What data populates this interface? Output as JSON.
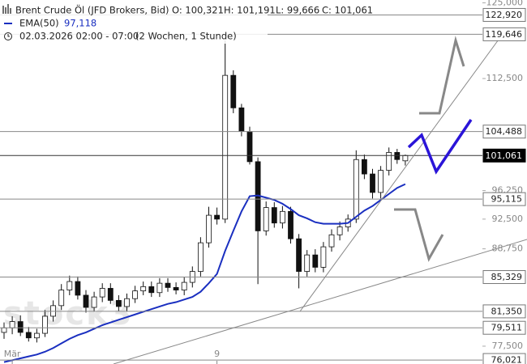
{
  "chart_data": {
    "type": "candlestick",
    "header": {
      "title": "Brent Crude Öl (JFD Brokers, Bid)",
      "open": "O: 100,321",
      "high": "H: 101,191",
      "low": "L: 99,666",
      "close": "C: 101,061",
      "ema_label": "EMA(50)",
      "ema_value": "97,118",
      "period": "02.03.2026 02:00 - 07:00",
      "range": "(2 Wochen, 1 Stunde)"
    },
    "watermark": "stock3",
    "categories": [
      null,
      "Mär",
      null,
      null,
      null,
      null,
      null,
      null,
      null,
      null,
      null,
      null,
      null,
      null,
      null,
      null,
      null,
      null,
      null,
      null,
      null,
      null,
      null,
      null,
      null,
      null,
      "9",
      null,
      null,
      null,
      null,
      null,
      null,
      null,
      null,
      null,
      null,
      null,
      null,
      null,
      null,
      null,
      null,
      null,
      null,
      null,
      null,
      null,
      null,
      null
    ],
    "open": [
      79.0,
      79.5,
      80.2,
      79.0,
      78.4,
      78.9,
      80.8,
      82.0,
      83.8,
      84.8,
      83.2,
      81.8,
      83.0,
      84.0,
      82.6,
      81.9,
      82.8,
      83.7,
      84.2,
      83.5,
      84.6,
      84.1,
      83.8,
      84.7,
      86.0,
      89.5,
      93.0,
      92.5,
      113.0,
      108.0,
      104.5,
      100.2,
      91.0,
      94.0,
      92.0,
      93.5,
      90.0,
      86.0,
      88.0,
      86.5,
      89.0,
      90.5,
      91.5,
      92.5,
      100.5,
      98.5,
      96.0,
      99.0,
      101.5,
      100.321
    ],
    "high": [
      80.1,
      80.8,
      80.9,
      79.6,
      79.4,
      81.5,
      82.6,
      84.5,
      85.5,
      85.4,
      83.8,
      83.6,
      84.6,
      84.6,
      83.2,
      83.4,
      84.3,
      84.8,
      84.8,
      85.2,
      85.2,
      84.7,
      85.3,
      86.6,
      90.2,
      94.1,
      94.0,
      118.6,
      113.8,
      108.6,
      105.2,
      100.8,
      94.8,
      94.7,
      94.2,
      94.1,
      90.6,
      88.6,
      88.7,
      89.6,
      91.2,
      92.2,
      93.1,
      101.8,
      101.2,
      99.2,
      99.6,
      102.2,
      102.0,
      101.191
    ],
    "low": [
      78.3,
      78.8,
      78.6,
      78.0,
      77.9,
      78.5,
      80.2,
      81.5,
      83.2,
      82.7,
      81.2,
      81.3,
      82.4,
      82.2,
      81.4,
      81.3,
      82.3,
      83.2,
      83.0,
      83.0,
      83.6,
      83.3,
      83.2,
      84.1,
      85.4,
      88.9,
      91.8,
      92.0,
      107.2,
      103.8,
      99.8,
      84.5,
      90.4,
      91.4,
      91.3,
      89.4,
      84.0,
      85.4,
      85.9,
      85.9,
      88.4,
      89.8,
      90.9,
      92.0,
      97.8,
      95.2,
      95.2,
      98.3,
      99.9,
      99.666
    ],
    "close": [
      79.5,
      80.2,
      79.0,
      78.4,
      78.9,
      80.8,
      82.0,
      83.8,
      84.8,
      83.2,
      81.8,
      83.0,
      84.0,
      82.6,
      81.9,
      82.8,
      83.7,
      84.2,
      83.5,
      84.6,
      84.1,
      83.8,
      84.7,
      86.0,
      89.5,
      93.0,
      92.5,
      113.0,
      108.0,
      104.5,
      100.2,
      91.0,
      94.0,
      92.0,
      93.5,
      90.0,
      86.0,
      88.0,
      86.5,
      89.0,
      90.5,
      91.5,
      92.5,
      100.5,
      98.5,
      96.0,
      99.0,
      101.5,
      100.5,
      101.061
    ],
    "ema": {
      "name": "EMA(50)",
      "color": "#1a2fc0",
      "values": [
        75.8,
        76.0,
        76.2,
        76.4,
        76.6,
        76.9,
        77.3,
        77.8,
        78.3,
        78.7,
        79.0,
        79.4,
        79.8,
        80.1,
        80.4,
        80.7,
        81.0,
        81.3,
        81.6,
        81.9,
        82.2,
        82.4,
        82.7,
        83.0,
        83.6,
        84.6,
        85.7,
        88.5,
        91.0,
        93.5,
        95.5,
        95.6,
        95.3,
        95.0,
        94.5,
        93.8,
        93.0,
        92.6,
        92.1,
        91.9,
        91.9,
        91.9,
        92.0,
        92.8,
        93.6,
        94.2,
        95.0,
        95.8,
        96.6,
        97.118
      ]
    },
    "log_scale": true,
    "ylim": [
      75.6,
      125.5
    ],
    "yticks": [
      {
        "value": 125,
        "label": "125,000"
      },
      {
        "value": 112.5,
        "label": "112,500"
      },
      {
        "value": 96.25,
        "label": "96,250"
      },
      {
        "value": 92.5,
        "label": "92,500"
      },
      {
        "value": 88.75,
        "label": "88,750"
      },
      {
        "value": 77.5,
        "label": "77,500"
      }
    ],
    "levels": [
      {
        "value": 122.92,
        "label": "122,920"
      },
      {
        "value": 119.646,
        "label": "119,646"
      },
      {
        "value": 104.488,
        "label": "104,488"
      },
      {
        "value": 101.061,
        "label": "101,061",
        "color": "#000000"
      },
      {
        "value": 95.115,
        "label": "95,115"
      },
      {
        "value": 85.329,
        "label": "85,329"
      },
      {
        "value": 81.35,
        "label": "81,350"
      },
      {
        "value": 79.511,
        "label": "79,511"
      },
      {
        "value": 76.021,
        "label": "76,021"
      }
    ]
  }
}
